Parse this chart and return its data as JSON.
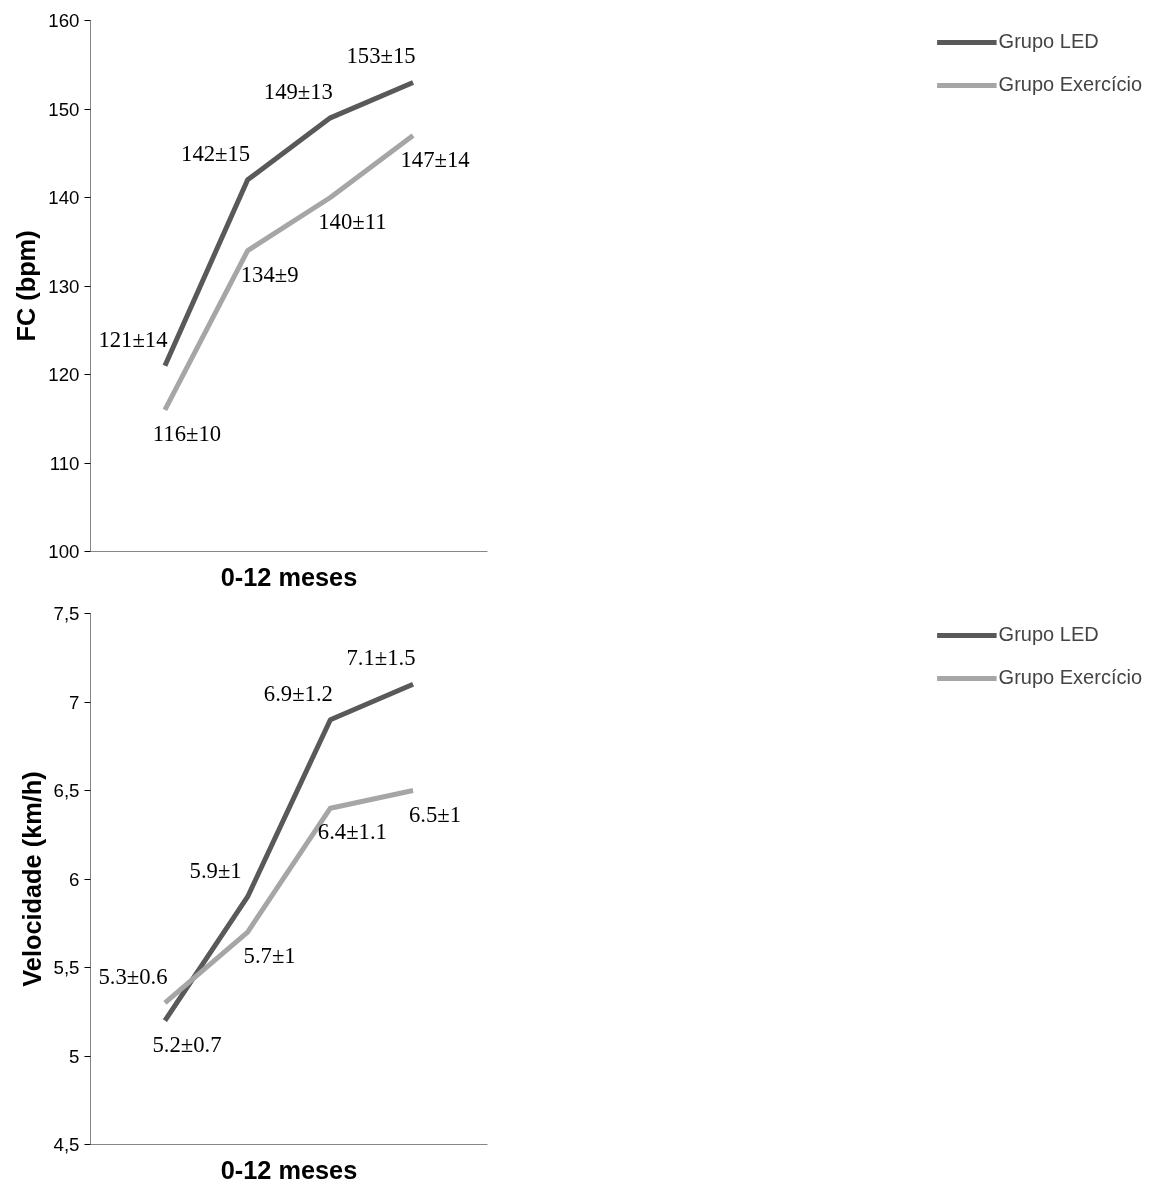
{
  "chart_data": [
    {
      "type": "line",
      "categories": [
        null,
        null,
        null,
        null
      ],
      "xlabel": "0-12 meses",
      "ylabel": "FC (bpm)",
      "ylim": [
        100,
        160
      ],
      "yticks": [
        100,
        110,
        120,
        130,
        140,
        150,
        160
      ],
      "grid": false,
      "legend": "right",
      "marker": "none",
      "line_style": "solid",
      "series": [
        {
          "name": "Grupo LED",
          "color": "#595959",
          "values": [
            121,
            142,
            149,
            153
          ],
          "value_labels": [
            "121±14",
            "142±15",
            "149±13",
            "153±15"
          ]
        },
        {
          "name": "Grupo Exercício",
          "color": "#a6a6a6",
          "values": [
            116,
            134,
            140,
            147
          ],
          "value_labels": [
            "116±10",
            "134±9",
            "140±11",
            "147±14"
          ]
        }
      ]
    },
    {
      "type": "line",
      "categories": [
        null,
        null,
        null,
        null
      ],
      "xlabel": "0-12 meses",
      "ylabel": "Velocidade (km/h)",
      "ylim": [
        4.5,
        7.5
      ],
      "yticks": [
        {
          "value": 4.5,
          "label": "4,5"
        },
        5,
        {
          "value": 5.5,
          "label": "5,5"
        },
        6,
        {
          "value": 6.5,
          "label": "6,5"
        },
        7,
        {
          "value": 7.5,
          "label": "7,5"
        }
      ],
      "grid": false,
      "legend": "right",
      "marker": "none",
      "line_style": "solid",
      "series": [
        {
          "name": "Grupo LED",
          "color": "#595959",
          "values": [
            5.2,
            5.9,
            6.9,
            7.1
          ],
          "value_labels": [
            "5.2±0.7",
            "5.9±1",
            "6.9±1.2",
            "7.1±1.5"
          ]
        },
        {
          "name": "Grupo Exercício",
          "color": "#a6a6a6",
          "values": [
            5.3,
            5.7,
            6.4,
            6.5
          ],
          "value_labels": [
            "5.3±0.6",
            "5.7±1",
            "6.4±1.1",
            "6.5±1"
          ]
        }
      ]
    }
  ]
}
